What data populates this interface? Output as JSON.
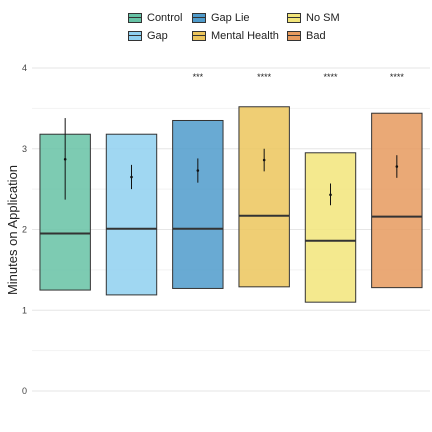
{
  "chart_data": {
    "type": "box",
    "ylabel": "Minutes on Application",
    "xlabel": "",
    "ylim": [
      0,
      4
    ],
    "yticks": [
      "0",
      "1",
      "2",
      "3",
      "4"
    ],
    "grid": true,
    "legend_position": "top",
    "legend": [
      {
        "name": "Control",
        "color": "#66c2a5"
      },
      {
        "name": "Gap",
        "color": "#8fd0f0"
      },
      {
        "name": "Gap Lie",
        "color": "#4f9bcb"
      },
      {
        "name": "Mental Health",
        "color": "#ecc55c"
      },
      {
        "name": "No SM",
        "color": "#f2e57a"
      },
      {
        "name": "Bad",
        "color": "#e69a5e"
      }
    ],
    "series": [
      {
        "name": "Control",
        "color": "#66c2a5",
        "q1": 1.25,
        "median": 1.95,
        "q3": 3.18,
        "mean": 2.87,
        "ci": [
          2.37,
          3.38
        ],
        "sig": ""
      },
      {
        "name": "Gap",
        "color": "#8fd0f0",
        "q1": 1.19,
        "median": 2.01,
        "q3": 3.18,
        "mean": 2.65,
        "ci": [
          2.5,
          2.8
        ],
        "sig": ""
      },
      {
        "name": "Gap Lie",
        "color": "#4f9bcb",
        "q1": 1.27,
        "median": 2.01,
        "q3": 3.35,
        "mean": 2.73,
        "ci": [
          2.58,
          2.88
        ],
        "sig": "***"
      },
      {
        "name": "Mental Health",
        "color": "#ecc55c",
        "q1": 1.29,
        "median": 2.17,
        "q3": 3.52,
        "mean": 2.86,
        "ci": [
          2.72,
          3.0
        ],
        "sig": "****"
      },
      {
        "name": "No SM",
        "color": "#f2e57a",
        "q1": 1.1,
        "median": 1.86,
        "q3": 2.95,
        "mean": 2.43,
        "ci": [
          2.3,
          2.57
        ],
        "sig": "****"
      },
      {
        "name": "Bad",
        "color": "#e69a5e",
        "q1": 1.28,
        "median": 2.16,
        "q3": 3.44,
        "mean": 2.78,
        "ci": [
          2.64,
          2.92
        ],
        "sig": "****"
      }
    ]
  }
}
